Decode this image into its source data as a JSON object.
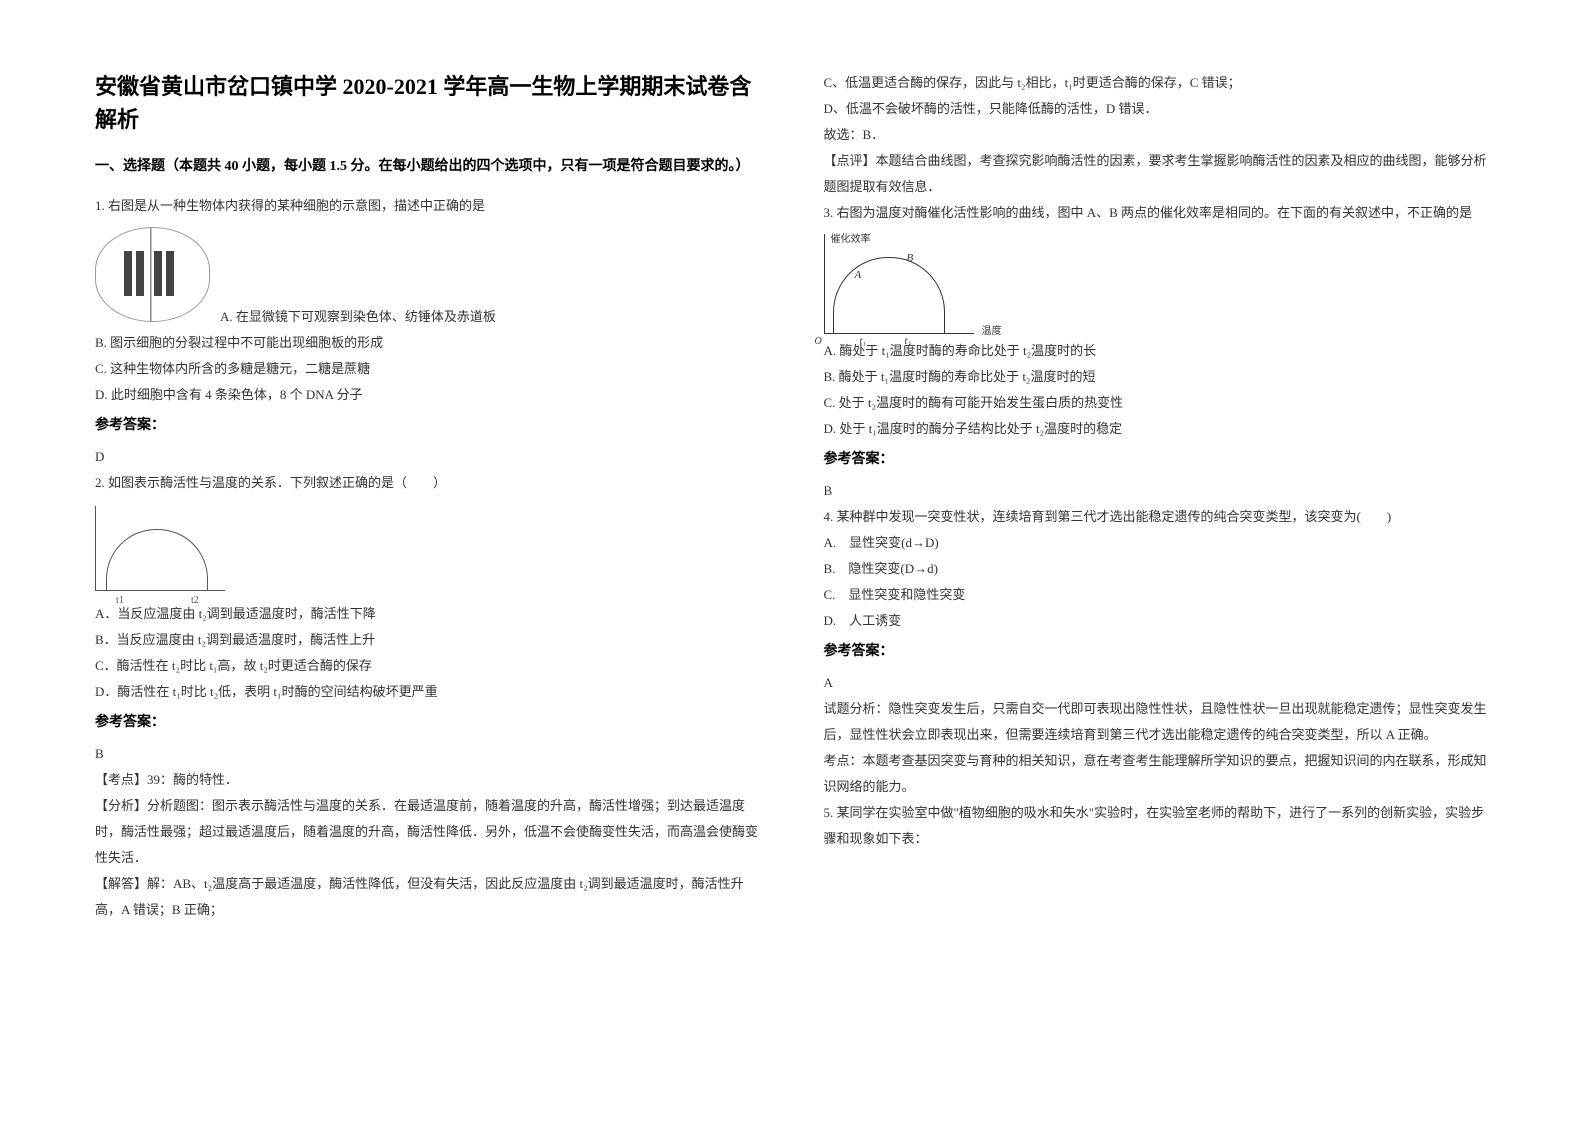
{
  "title": "安徽省黄山市岔口镇中学 2020-2021 学年高一生物上学期期末试卷含解析",
  "section1_header": "一、选择题（本题共 40 小题，每小题 1.5 分。在每小题给出的四个选项中，只有一项是符合题目要求的。）",
  "q1": {
    "stem": "1. 右图是从一种生物体内获得的某种细胞的示意图，描述中正确的是",
    "optA": "A. 在显微镜下可观察到染色体、纺锤体及赤道板",
    "optB": "B. 图示细胞的分裂过程中不可能出现细胞板的形成",
    "optC": "C. 这种生物体内所含的多糖是糖元，二糖是蔗糖",
    "optD": "D. 此时细胞中含有 4 条染色体，8 个 DNA 分子",
    "answer_label": "参考答案：",
    "answer": "D"
  },
  "q2": {
    "stem": "2. 如图表示酶活性与温度的关系．下列叙述正确的是（　　）",
    "optA": "A．当反应温度由 t₂调到最适温度时，酶活性下降",
    "optB": "B．当反应温度由 t₂调到最适温度时，酶活性上升",
    "optC": "C．酶活性在 t₂时比 t₁高，故 t₂时更适合酶的保存",
    "optD": "D．酶活性在 t₁时比 t₂低，表明 t₁时酶的空间结构破坏更严重",
    "answer_label": "参考答案：",
    "answer": "B",
    "kaodian": "【考点】39：酶的特性．",
    "fenxi": "【分析】分析题图：图示表示酶活性与温度的关系．在最适温度前，随着温度的升高，酶活性增强；到达最适温度时，酶活性最强；超过最适温度后，随着温度的升高，酶活性降低．另外，低温不会使酶变性失活，而高温会使酶变性失活．",
    "jieda": "【解答】解：AB、t₂温度高于最适温度，酶活性降低，但没有失活，因此反应温度由 t₂调到最适温度时，酶活性升高，A 错误；B 正确；",
    "chart": {
      "t1_label": "t1",
      "t2_label": "t2"
    }
  },
  "col2_top": {
    "lineC": "C、低温更适合酶的保存，因此与 t₂相比，t₁时更适合酶的保存，C 错误；",
    "lineD": "D、低温不会破坏酶的活性，只能降低酶的活性，D 错误．",
    "guxuan": "故选：B．",
    "dianping": "【点评】本题结合曲线图，考查探究影响酶活性的因素，要求考生掌握影响酶活性的因素及相应的曲线图，能够分析题图提取有效信息．"
  },
  "q3": {
    "stem": "3. 右图为温度对酶催化活性影响的曲线，图中 A、B 两点的催化效率是相同的。在下面的有关叙述中，不正确的是",
    "optA": "A. 酶处于 t₁温度时酶的寿命比处于 t₂温度时的长",
    "optB": "B. 酶处于 t₁温度时酶的寿命比处于 t₂温度时的短",
    "optC": "C. 处于 t₂温度时的酶有可能开始发生蛋白质的热变性",
    "optD": "D. 处于 t₁温度时的酶分子结构比处于 t₂温度时的稳定",
    "answer_label": "参考答案：",
    "answer": "B",
    "chart": {
      "ylabel": "催化效率",
      "xlabel": "温度",
      "o": "O",
      "t1": "t₁",
      "t2": "t₂",
      "a": "A",
      "b": "B"
    }
  },
  "q4": {
    "stem": "4. 某种群中发现一突变性状，连续培育到第三代才选出能稳定遗传的纯合突变类型，该突变为(　　)",
    "optA": "A.　显性突变(d→D)",
    "optB": "B.　隐性突变(D→d)",
    "optC": "C.　显性突变和隐性突变",
    "optD": "D.　人工诱变",
    "answer_label": "参考答案：",
    "answer": "A",
    "fenxi": "试题分析：隐性突变发生后，只需自交一代即可表现出隐性性状，且隐性性状一旦出现就能稳定遗传；显性突变发生后，显性性状会立即表现出来，但需要连续培育到第三代才选出能稳定遗传的纯合突变类型，所以 A 正确。",
    "kaodian": "考点：本题考查基因突变与育种的相关知识，意在考查考生能理解所学知识的要点，把握知识间的内在联系，形成知识网络的能力。"
  },
  "q5": {
    "stem": "5. 某同学在实验室中做\"植物细胞的吸水和失水\"实验时，在实验室老师的帮助下，进行了一系列的创新实验，实验步骤和现象如下表："
  }
}
